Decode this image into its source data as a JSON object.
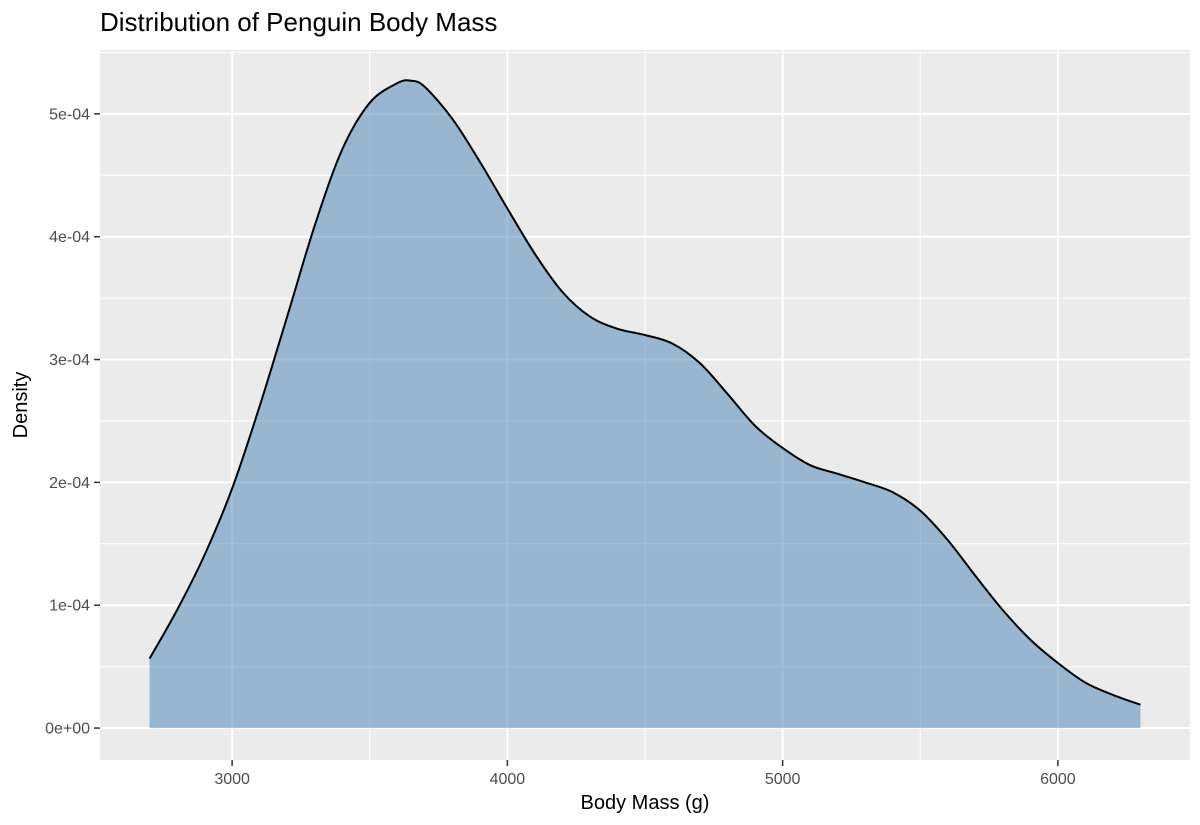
{
  "chart_data": {
    "type": "area",
    "title": "Distribution of Penguin Body Mass",
    "xlabel": "Body Mass (g)",
    "ylabel": "Density",
    "xlim": [
      2520,
      6480
    ],
    "ylim": [
      -2.6e-05,
      0.000552
    ],
    "x_ticks": [
      3000,
      4000,
      5000,
      6000
    ],
    "x_tick_labels": [
      "3000",
      "4000",
      "5000",
      "6000"
    ],
    "y_ticks": [
      0,
      0.0001,
      0.0002,
      0.0003,
      0.0004,
      0.0005
    ],
    "y_tick_labels": [
      "0e+00",
      "1e-04",
      "2e-04",
      "3e-04",
      "4e-04",
      "5e-04"
    ],
    "grid": true,
    "fill_color": "#4682B4",
    "fill_opacity": 0.5,
    "line_color": "#000000",
    "panel_background": "#EBEBEB",
    "series": [
      {
        "x": [
          2700,
          2800,
          2900,
          3000,
          3100,
          3200,
          3300,
          3400,
          3500,
          3600,
          3650,
          3700,
          3800,
          3900,
          4000,
          4100,
          4200,
          4300,
          4400,
          4500,
          4600,
          4700,
          4800,
          4900,
          5000,
          5100,
          5200,
          5300,
          5400,
          5500,
          5600,
          5700,
          5800,
          5900,
          6000,
          6100,
          6200,
          6300
        ],
        "y": [
          5.65e-05,
          9.61e-05,
          0.000141,
          0.000195,
          0.000262,
          0.000335,
          0.000409,
          0.000471,
          0.000509,
          0.000525,
          0.000527,
          0.000522,
          0.000496,
          0.000461,
          0.000423,
          0.000386,
          0.000355,
          0.000335,
          0.000325,
          0.00032,
          0.000313,
          0.000297,
          0.000272,
          0.000246,
          0.000228,
          0.000214,
          0.000207,
          0.0002,
          0.000192,
          0.000177,
          0.000153,
          0.000124,
          9.6e-05,
          7.2e-05,
          5.3e-05,
          3.7e-05,
          2.7e-05,
          1.9e-05
        ]
      }
    ]
  }
}
